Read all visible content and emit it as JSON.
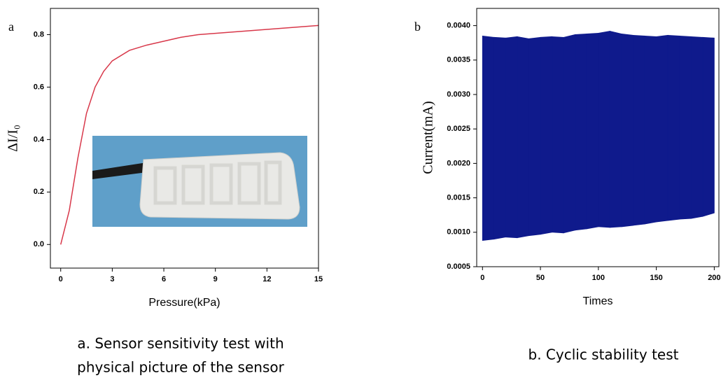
{
  "chart_data": [
    {
      "type": "line",
      "panel": "a",
      "x_label": "Pressure(kPa)",
      "y_label": "ΔI/I₀",
      "caption": [
        "a. Sensor sensitivity test with",
        "physical picture of the sensor"
      ],
      "x": [
        0,
        0.5,
        1,
        1.5,
        2,
        2.5,
        3,
        4,
        5,
        6,
        7,
        8,
        9,
        10,
        11,
        12,
        13,
        14,
        15
      ],
      "values": [
        0,
        0.13,
        0.33,
        0.5,
        0.6,
        0.66,
        0.7,
        0.74,
        0.76,
        0.775,
        0.79,
        0.8,
        0.805,
        0.81,
        0.815,
        0.82,
        0.825,
        0.83,
        0.835
      ],
      "color": "#d8384a",
      "xlim": [
        -0.6,
        15
      ],
      "xticks": [
        0,
        3,
        6,
        9,
        12,
        15
      ],
      "ylim": [
        -0.09,
        0.9
      ],
      "yticks": [
        {
          "value": 0,
          "label": "0.0"
        },
        0.2,
        0.4,
        0.6,
        0.8
      ]
    },
    {
      "type": "range_area",
      "panel": "b",
      "x_label": "Times",
      "y_label": "Current(mA)",
      "caption": [
        "b. Cyclic stability test"
      ],
      "x": [
        0,
        10,
        20,
        30,
        40,
        50,
        60,
        70,
        80,
        90,
        100,
        110,
        120,
        130,
        140,
        150,
        160,
        170,
        180,
        190,
        200
      ],
      "high": [
        0.00385,
        0.00383,
        0.00382,
        0.00384,
        0.00381,
        0.00383,
        0.00384,
        0.00383,
        0.00387,
        0.00388,
        0.00389,
        0.00392,
        0.00388,
        0.00386,
        0.00385,
        0.00384,
        0.00386,
        0.00385,
        0.00384,
        0.00383,
        0.00382
      ],
      "low": [
        0.00088,
        0.0009,
        0.00093,
        0.00092,
        0.00095,
        0.00097,
        0.001,
        0.00099,
        0.00103,
        0.00105,
        0.00108,
        0.00107,
        0.00108,
        0.0011,
        0.00112,
        0.00115,
        0.00117,
        0.00119,
        0.0012,
        0.00123,
        0.00128
      ],
      "color": "#0f1a8c",
      "xlim": [
        -5,
        204
      ],
      "xticks": [
        0,
        50,
        100,
        150,
        200
      ],
      "ylim": [
        0.0005,
        0.00425
      ],
      "yticks": [
        0.0005,
        {
          "value": 0.001,
          "label": "0.0010"
        },
        0.0015,
        {
          "value": 0.002,
          "label": "0.0020"
        },
        0.0025,
        {
          "value": 0.003,
          "label": "0.0030"
        },
        0.0035,
        {
          "value": 0.004,
          "label": "0.0040"
        }
      ]
    }
  ]
}
